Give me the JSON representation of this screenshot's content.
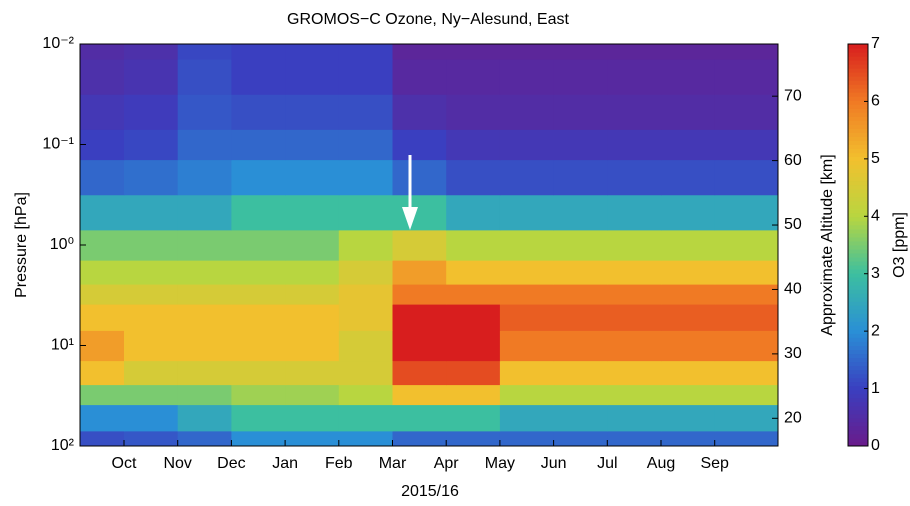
{
  "chart_data": {
    "type": "heatmap",
    "title": "GROMOS−C Ozone, Ny−Alesund, East",
    "xlabel": "2015/16",
    "ylabel": "Pressure [hPa]",
    "y2label": "Approximate Altitude [km]",
    "colorbar_label": "O3 [ppm]",
    "categories": [
      null,
      "Oct",
      "Nov",
      "Dec",
      "Jan",
      "Feb",
      "Mar",
      "Apr",
      "May",
      "Jun",
      "Jul",
      "Aug",
      "Sep"
    ],
    "y": [
      100,
      50,
      30,
      20,
      10,
      5,
      3,
      2,
      1,
      0.5,
      0.2,
      0.1,
      0.05,
      0.02,
      0.01
    ],
    "values": [
      [
        1.2,
        1.3,
        1.5,
        2,
        2,
        2,
        1.5,
        1.5,
        1.5,
        1.5,
        1.5,
        1.5,
        1.5
      ],
      [
        2,
        2,
        2.5,
        3,
        3,
        3,
        3,
        3,
        2.5,
        2.5,
        2.5,
        2.5,
        2.5
      ],
      [
        3.5,
        3.5,
        3.5,
        3.8,
        3.8,
        4,
        5,
        5,
        4,
        4,
        4,
        4,
        4
      ],
      [
        5,
        4.5,
        4.5,
        4.5,
        4.5,
        4.5,
        6.5,
        6.5,
        5,
        5,
        5,
        5,
        5
      ],
      [
        5.5,
        5,
        5,
        5,
        5,
        4.5,
        7,
        7,
        6,
        6,
        6,
        6,
        6
      ],
      [
        5,
        5,
        5,
        5,
        5,
        4.8,
        7,
        7,
        6.3,
        6.3,
        6.3,
        6.3,
        6.3
      ],
      [
        4.5,
        4.5,
        4.5,
        4.5,
        4.5,
        4.8,
        6,
        6,
        6,
        6,
        6,
        6,
        6
      ],
      [
        4,
        4,
        4,
        4,
        4,
        4.5,
        5.5,
        5,
        5,
        5,
        5,
        5,
        5
      ],
      [
        3.5,
        3.5,
        3.5,
        3.5,
        3.5,
        4,
        4.5,
        4,
        4,
        4,
        4,
        4,
        4
      ],
      [
        2.5,
        2.5,
        2.5,
        3,
        3,
        3,
        3,
        2.5,
        2.5,
        2.5,
        2.5,
        2.5,
        2.5
      ],
      [
        1.5,
        1.6,
        1.8,
        2,
        2,
        2,
        1.5,
        1.2,
        1.2,
        1.2,
        1.2,
        1.2,
        1.2
      ],
      [
        1,
        1.1,
        1.5,
        1.5,
        1.5,
        1.5,
        1,
        0.8,
        0.8,
        0.8,
        0.8,
        0.8,
        0.8
      ],
      [
        0.8,
        0.9,
        1.3,
        1.2,
        1.2,
        1.2,
        0.6,
        0.5,
        0.5,
        0.5,
        0.5,
        0.5,
        0.5
      ],
      [
        0.6,
        0.7,
        1.2,
        1,
        1,
        1,
        0.4,
        0.4,
        0.4,
        0.4,
        0.4,
        0.4,
        0.4
      ],
      [
        0.5,
        0.6,
        1.1,
        1,
        1,
        1,
        0.3,
        0.3,
        0.3,
        0.3,
        0.3,
        0.3,
        0.3
      ]
    ],
    "ylim": [
      100,
      0.01
    ],
    "log_y": true,
    "yticks": [
      {
        "value": 100,
        "label": "10²"
      },
      {
        "value": 10,
        "label": "10¹"
      },
      {
        "value": 1,
        "label": "10⁰"
      },
      {
        "value": 0.1,
        "label": "10⁻¹"
      },
      {
        "value": 0.01,
        "label": "10⁻²"
      }
    ],
    "y2lim": [
      15.7,
      78.1
    ],
    "y2ticks": [
      20,
      30,
      40,
      50,
      60,
      70
    ],
    "clim": [
      0,
      7
    ],
    "cticks": [
      0,
      1,
      2,
      3,
      4,
      5,
      6,
      7
    ],
    "colors": [
      "#6a1b8a",
      "#3a3fc0",
      "#2a8fd6",
      "#3cbfa0",
      "#b8d640",
      "#f2c02e",
      "#f07a24",
      "#d81e1e"
    ]
  }
}
